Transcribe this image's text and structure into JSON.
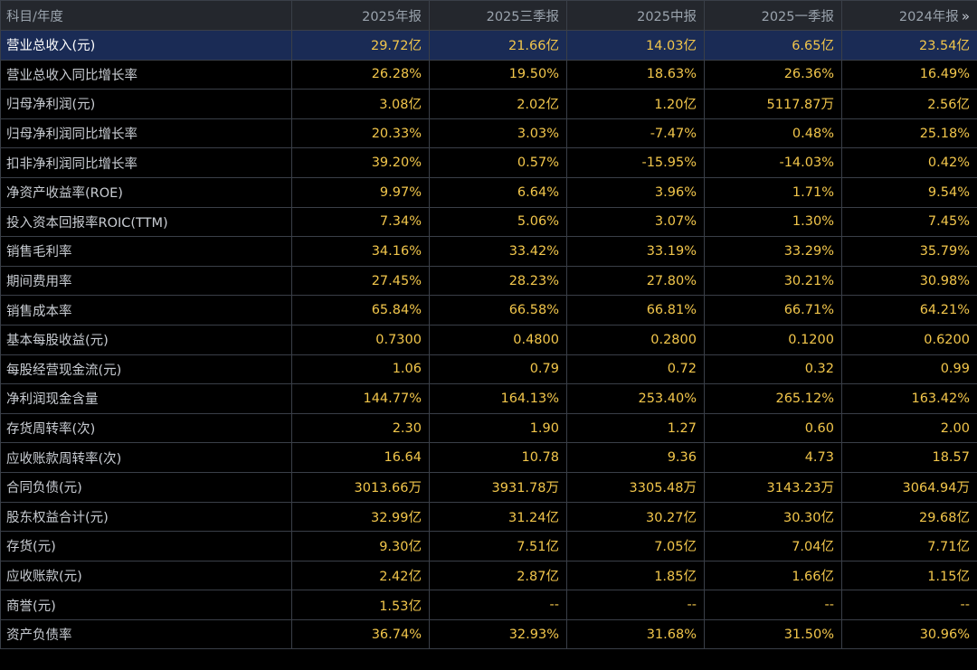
{
  "header": {
    "corner": "科目/年度",
    "columns": [
      "2025年报",
      "2025三季报",
      "2025中报",
      "2025一季报",
      "2024年报"
    ],
    "more_icon": "»"
  },
  "rows": [
    {
      "label": "营业总收入(元)",
      "values": [
        "29.72亿",
        "21.66亿",
        "14.03亿",
        "6.65亿",
        "23.54亿"
      ]
    },
    {
      "label": "营业总收入同比增长率",
      "values": [
        "26.28%",
        "19.50%",
        "18.63%",
        "26.36%",
        "16.49%"
      ]
    },
    {
      "label": "归母净利润(元)",
      "values": [
        "3.08亿",
        "2.02亿",
        "1.20亿",
        "5117.87万",
        "2.56亿"
      ]
    },
    {
      "label": "归母净利润同比增长率",
      "values": [
        "20.33%",
        "3.03%",
        "-7.47%",
        "0.48%",
        "25.18%"
      ]
    },
    {
      "label": "扣非净利润同比增长率",
      "values": [
        "39.20%",
        "0.57%",
        "-15.95%",
        "-14.03%",
        "0.42%"
      ]
    },
    {
      "label": "净资产收益率(ROE)",
      "values": [
        "9.97%",
        "6.64%",
        "3.96%",
        "1.71%",
        "9.54%"
      ]
    },
    {
      "label": "投入资本回报率ROIC(TTM)",
      "values": [
        "7.34%",
        "5.06%",
        "3.07%",
        "1.30%",
        "7.45%"
      ]
    },
    {
      "label": "销售毛利率",
      "values": [
        "34.16%",
        "33.42%",
        "33.19%",
        "33.29%",
        "35.79%"
      ]
    },
    {
      "label": "期间费用率",
      "values": [
        "27.45%",
        "28.23%",
        "27.80%",
        "30.21%",
        "30.98%"
      ]
    },
    {
      "label": "销售成本率",
      "values": [
        "65.84%",
        "66.58%",
        "66.81%",
        "66.71%",
        "64.21%"
      ]
    },
    {
      "label": "基本每股收益(元)",
      "values": [
        "0.7300",
        "0.4800",
        "0.2800",
        "0.1200",
        "0.6200"
      ]
    },
    {
      "label": "每股经营现金流(元)",
      "values": [
        "1.06",
        "0.79",
        "0.72",
        "0.32",
        "0.99"
      ]
    },
    {
      "label": "净利润现金含量",
      "values": [
        "144.77%",
        "164.13%",
        "253.40%",
        "265.12%",
        "163.42%"
      ]
    },
    {
      "label": "存货周转率(次)",
      "values": [
        "2.30",
        "1.90",
        "1.27",
        "0.60",
        "2.00"
      ]
    },
    {
      "label": "应收账款周转率(次)",
      "values": [
        "16.64",
        "10.78",
        "9.36",
        "4.73",
        "18.57"
      ]
    },
    {
      "label": "合同负债(元)",
      "values": [
        "3013.66万",
        "3931.78万",
        "3305.48万",
        "3143.23万",
        "3064.94万"
      ]
    },
    {
      "label": "股东权益合计(元)",
      "values": [
        "32.99亿",
        "31.24亿",
        "30.27亿",
        "30.30亿",
        "29.68亿"
      ]
    },
    {
      "label": "存货(元)",
      "values": [
        "9.30亿",
        "7.51亿",
        "7.05亿",
        "7.04亿",
        "7.71亿"
      ]
    },
    {
      "label": "应收账款(元)",
      "values": [
        "2.42亿",
        "2.87亿",
        "1.85亿",
        "1.66亿",
        "1.15亿"
      ]
    },
    {
      "label": "商誉(元)",
      "values": [
        "1.53亿",
        "--",
        "--",
        "--",
        "--"
      ]
    },
    {
      "label": "资产负债率",
      "values": [
        "36.74%",
        "32.93%",
        "31.68%",
        "31.50%",
        "30.96%"
      ]
    }
  ],
  "colors": {
    "background": "#000000",
    "header_bg": "#24272d",
    "highlight_row_bg": "#1a2b55",
    "value_text": "#f2c64b",
    "label_text": "#c8ccd2",
    "grid": "#3a3f48"
  }
}
